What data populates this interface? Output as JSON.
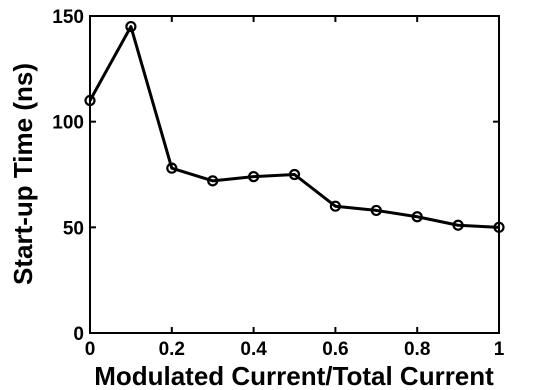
{
  "chart_data": {
    "type": "line",
    "title": "",
    "xlabel": "Modulated Current/Total Current",
    "ylabel": "Start-up Time (ns)",
    "xlim": [
      0,
      1
    ],
    "ylim": [
      0,
      150
    ],
    "xticks": [
      0,
      0.2,
      0.4,
      0.6,
      0.8,
      1
    ],
    "xtick_labels": [
      "0",
      "0.2",
      "0.4",
      "0.6",
      "0.8",
      "1"
    ],
    "yticks": [
      0,
      50,
      100,
      150
    ],
    "ytick_labels": [
      "0",
      "50",
      "100",
      "150"
    ],
    "grid": false,
    "legend": "none",
    "line_color": "#000000",
    "marker": "open-circle",
    "series": [
      {
        "x": [
          0,
          0.1,
          0.2,
          0.3,
          0.4,
          0.5,
          0.6,
          0.7,
          0.8,
          0.9,
          1.0
        ],
        "y": [
          110,
          145,
          78,
          72,
          74,
          75,
          60,
          58,
          55,
          51,
          50
        ]
      }
    ]
  }
}
